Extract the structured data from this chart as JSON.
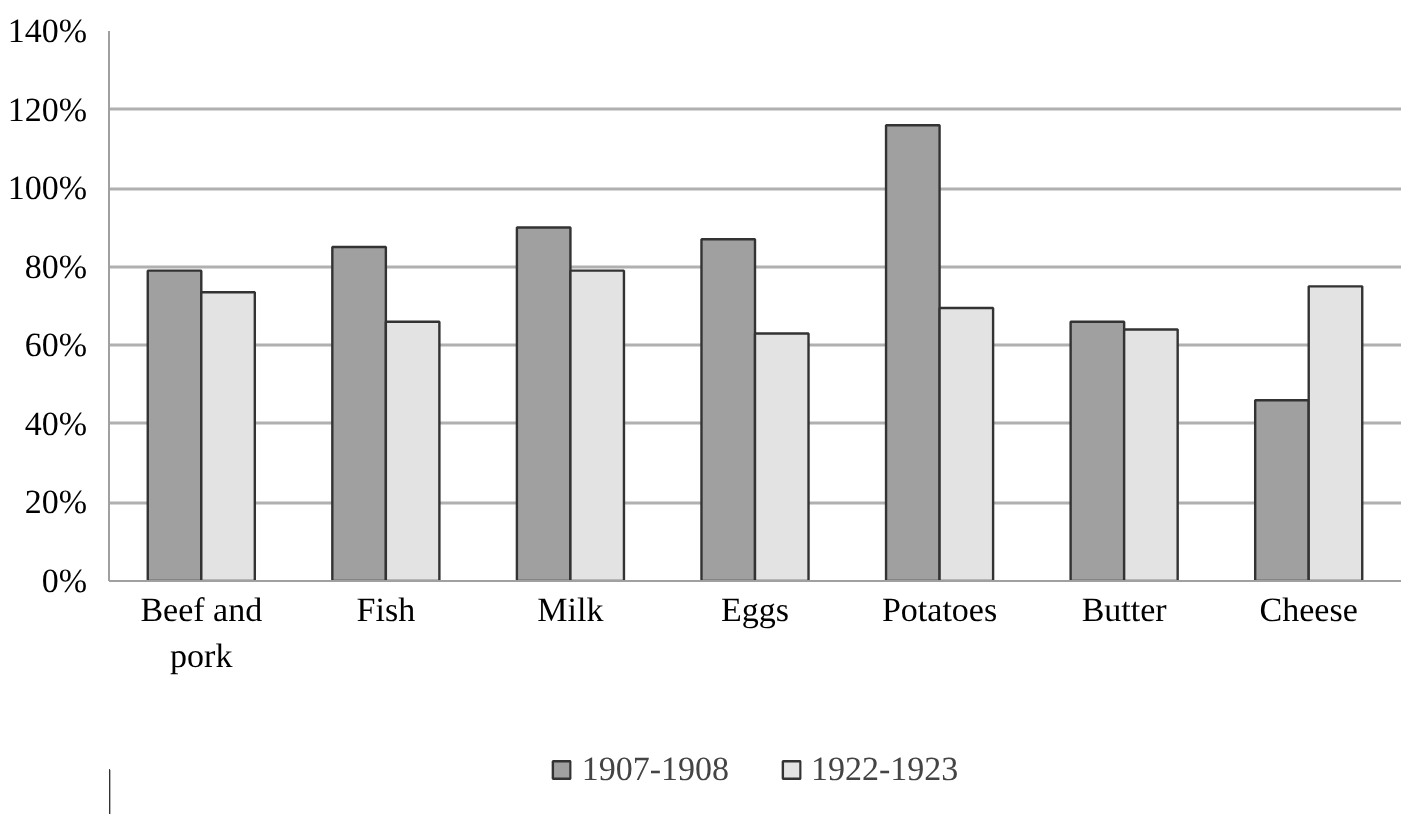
{
  "chart_data": {
    "type": "bar",
    "categories": [
      "Beef and pork",
      "Fish",
      "Milk",
      "Eggs",
      "Potatoes",
      "Butter",
      "Cheese"
    ],
    "series": [
      {
        "name": "1907-1908",
        "color": "#a0a0a0",
        "values": [
          79,
          85,
          90,
          87,
          116,
          66,
          46
        ]
      },
      {
        "name": "1922-1923",
        "color": "#e3e3e3",
        "values": [
          73.5,
          66,
          79,
          63,
          69.5,
          64,
          75
        ]
      }
    ],
    "ylim": [
      0,
      140
    ],
    "yticks": [
      {
        "value": 0,
        "label": "0%"
      },
      {
        "value": 20,
        "label": "20%"
      },
      {
        "value": 40,
        "label": "40%"
      },
      {
        "value": 60,
        "label": "60%"
      },
      {
        "value": 80,
        "label": "80%"
      },
      {
        "value": 100,
        "label": "100%"
      },
      {
        "value": 120,
        "label": "120%"
      },
      {
        "value": 140,
        "label": "140%"
      }
    ],
    "grid": "y",
    "legend": "bottom"
  }
}
